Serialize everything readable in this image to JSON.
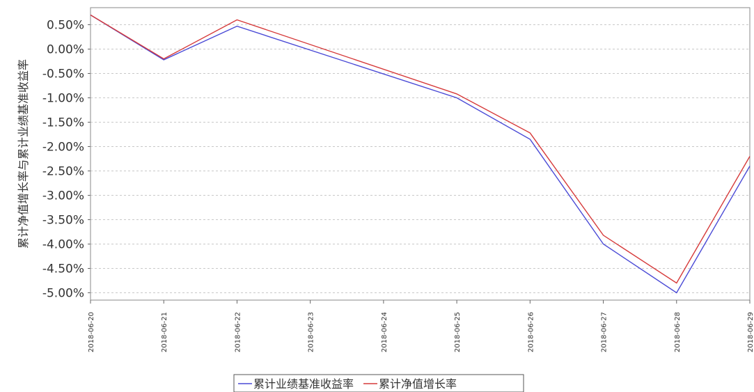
{
  "chart_data": {
    "type": "line",
    "title": "",
    "xlabel": "",
    "ylabel": "累计净值增长率与累计业绩基准收益率",
    "x": [
      "2018-06-20",
      "2018-06-21",
      "2018-06-22",
      "2018-06-23",
      "2018-06-24",
      "2018-06-25",
      "2018-06-26",
      "2018-06-27",
      "2018-06-28",
      "2018-06-29"
    ],
    "y_ticks": [
      "0.50%",
      "0.00%",
      "-0.50%",
      "-1.00%",
      "-1.50%",
      "-2.00%",
      "-2.50%",
      "-3.00%",
      "-3.50%",
      "-4.00%",
      "-4.50%",
      "-5.00%"
    ],
    "ylim": [
      -5.15,
      0.85
    ],
    "grid": true,
    "legend_position": "bottom",
    "series": [
      {
        "name": "累计业绩基准收益率",
        "color": "#4a4ad6",
        "values": [
          0.7,
          -0.22,
          0.47,
          null,
          null,
          -1.0,
          -1.85,
          -4.0,
          -5.0,
          -2.4
        ]
      },
      {
        "name": "累计净值增长率",
        "color": "#d63a3a",
        "values": [
          0.7,
          -0.2,
          0.6,
          null,
          null,
          -0.92,
          -1.72,
          -3.82,
          -4.8,
          -2.2
        ]
      }
    ]
  }
}
